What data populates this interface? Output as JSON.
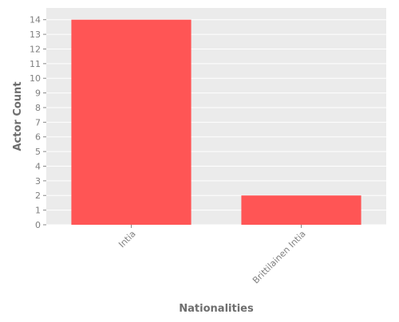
{
  "chart_data": {
    "type": "bar",
    "title": "",
    "categories": [
      "Intia",
      "Brittilainen Intia"
    ],
    "values": [
      14,
      2
    ],
    "xlabel": "Nationalities",
    "ylabel": "Actor Count",
    "ylim": [
      0,
      14.8
    ],
    "yticks": [
      0,
      1,
      2,
      3,
      4,
      5,
      6,
      7,
      8,
      9,
      10,
      11,
      12,
      13,
      14
    ],
    "grid": true,
    "legend": "none",
    "colors": {
      "bar": "#ff5555",
      "plot_background": "#ebebeb",
      "grid": "#ffffff",
      "tick_text": "#7f7f7f",
      "label_text": "#6e6e6e"
    }
  }
}
